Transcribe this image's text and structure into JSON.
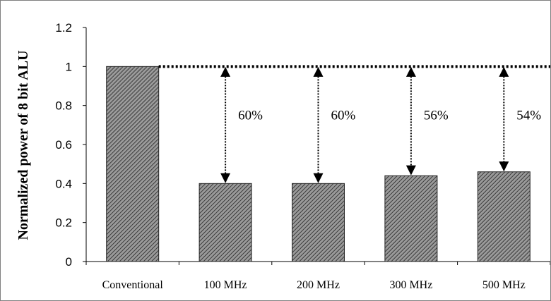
{
  "chart_data": {
    "type": "bar",
    "title": "",
    "xlabel": "",
    "ylabel": "Normalized power of 8 bit ALU",
    "ylim": [
      0,
      1.2
    ],
    "yticks": [
      0,
      0.2,
      0.4,
      0.6,
      0.8,
      1,
      1.2
    ],
    "ytick_labels": [
      "0",
      "0.2",
      "0.4",
      "0.6",
      "0.8",
      "1",
      "1.2"
    ],
    "categories": [
      "Conventional",
      "100 MHz",
      "200 MHz",
      "300 MHz",
      "500 MHz"
    ],
    "values": [
      1.0,
      0.4,
      0.4,
      0.44,
      0.46
    ],
    "grid": false,
    "bar_fill": "hatched diagonal",
    "colors": {
      "bar_hatch": "#555555",
      "bar_edge": "#222222",
      "axis": "#000000"
    },
    "reference_line": {
      "y": 1.0,
      "style": "dotted"
    },
    "annotations": [
      {
        "category": "100 MHz",
        "text": "60%"
      },
      {
        "category": "200 MHz",
        "text": "60%"
      },
      {
        "category": "300 MHz",
        "text": "56%"
      },
      {
        "category": "500 MHz",
        "text": "54%"
      }
    ]
  }
}
